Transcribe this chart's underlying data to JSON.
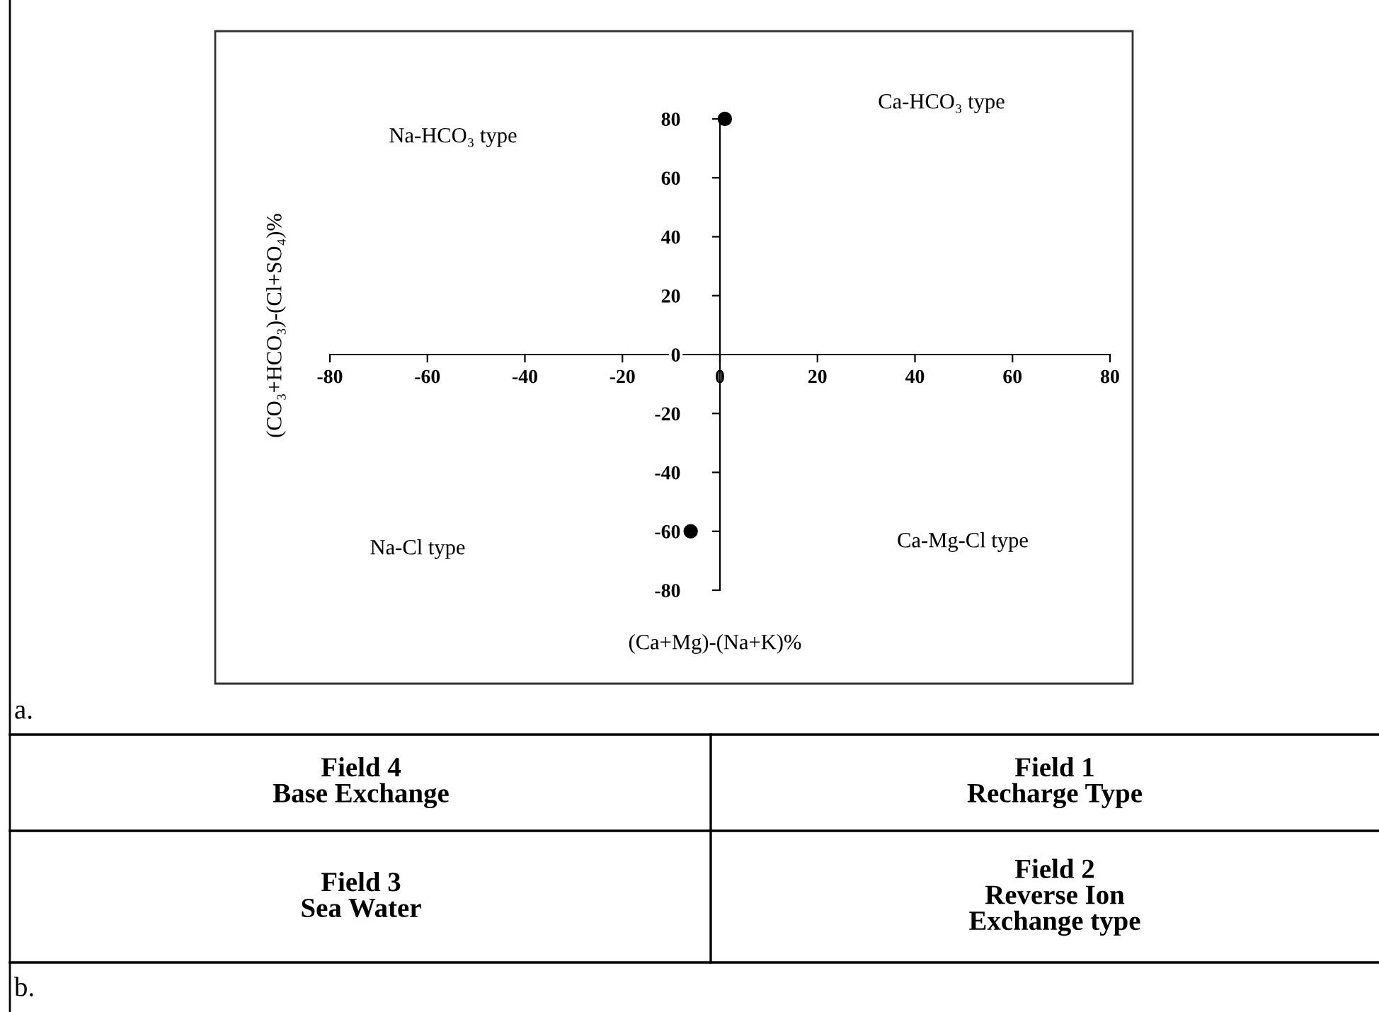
{
  "chart_data": {
    "type": "scatter",
    "xlabel": "(Ca+Mg)-(Na+K)%",
    "ylabel": "(CO₃+HCO₃)-(Cl+SO₄)%",
    "xlim": [
      -80,
      80
    ],
    "ylim": [
      -80,
      80
    ],
    "xticks": [
      -80,
      -60,
      -40,
      -20,
      0,
      20,
      40,
      60,
      80
    ],
    "yticks": [
      -80,
      -60,
      -40,
      -20,
      0,
      20,
      40,
      60,
      80
    ],
    "grid": false,
    "legend": false,
    "marker": "circle",
    "series": [
      {
        "color": "#000000",
        "x": [
          1,
          -6
        ],
        "values": [
          80,
          -60
        ]
      }
    ],
    "annotations": [
      "Na-HCO₃ type",
      "Ca-HCO₃ type",
      "Na-Cl type",
      "Ca-Mg-Cl type",
      "a.",
      "Field 4\nBase Exchange",
      "Field 1\nRecharge Type",
      "Field 3\nSea Water",
      "Field 2\nReverse Ion\nExchange type",
      "b."
    ]
  }
}
